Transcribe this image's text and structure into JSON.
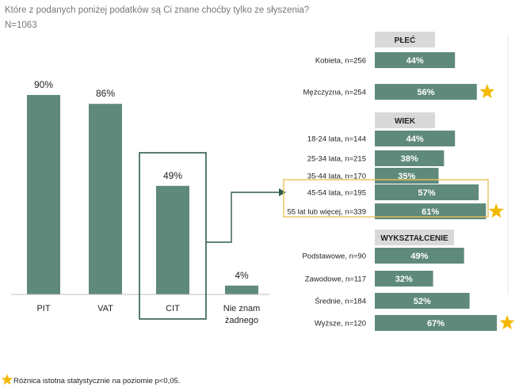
{
  "title": "Które z podanych poniżej podatków są Ci znane choćby tylko ze słyszenia?",
  "sample": "N=1063",
  "colors": {
    "bar": "#5f8a7b",
    "star": "#f5b800",
    "highlight_box": "#e8c15a",
    "cit_box": "#2f5c4e",
    "header_bg": "#d9d9d9"
  },
  "chart_data": [
    {
      "type": "bar",
      "title": "Które z podanych poniżej podatków są Ci znane choćby tylko ze słyszenia?",
      "subtitle": "N=1063",
      "categories": [
        "PIT",
        "VAT",
        "CIT",
        "Nie znam żadnego"
      ],
      "category_lines": [
        [
          "PIT"
        ],
        [
          "VAT"
        ],
        [
          "CIT"
        ],
        [
          "Nie znam",
          "żadnego"
        ]
      ],
      "values": [
        90,
        86,
        49,
        4
      ],
      "value_labels": [
        "90%",
        "86%",
        "49%",
        "4%"
      ],
      "ylim": [
        0,
        100
      ],
      "highlight": "CIT"
    },
    {
      "type": "bar",
      "orientation": "horizontal",
      "xlim": [
        0,
        100
      ],
      "groups": [
        {
          "header": "PŁEĆ",
          "items": [
            {
              "label": "Kobieta, n=256",
              "value": 44,
              "value_label": "44%",
              "star": false
            },
            {
              "label": "Mężczyzna, n=254",
              "value": 56,
              "value_label": "56%",
              "star": true
            }
          ]
        },
        {
          "header": "WIEK",
          "items": [
            {
              "label": "18-24 lata, n=144",
              "value": 44,
              "value_label": "44%",
              "star": false
            },
            {
              "label": "25-34 lata, n=215",
              "value": 38,
              "value_label": "38%",
              "star": false
            },
            {
              "label": "35-44 lata, n=170",
              "value": 35,
              "value_label": "35%",
              "star": false
            },
            {
              "label": "45-54 lata, n=195",
              "value": 57,
              "value_label": "57%",
              "star": false
            },
            {
              "label": "55 lat lub więcej, n=339",
              "value": 61,
              "value_label": "61%",
              "star": true
            }
          ]
        },
        {
          "header": "WYKSZTAŁCENIE",
          "items": [
            {
              "label": "Podstawowe, n=90",
              "value": 49,
              "value_label": "49%",
              "star": false
            },
            {
              "label": "Zawodowe, n=117",
              "value": 32,
              "value_label": "32%",
              "star": false
            },
            {
              "label": "Średnie, n=184",
              "value": 52,
              "value_label": "52%",
              "star": false
            },
            {
              "label": "Wyższe, n=120",
              "value": 67,
              "value_label": "67%",
              "star": true
            }
          ]
        }
      ]
    }
  ],
  "footnote": "Różnica istotna statystycznie na poziomie p<0,05."
}
